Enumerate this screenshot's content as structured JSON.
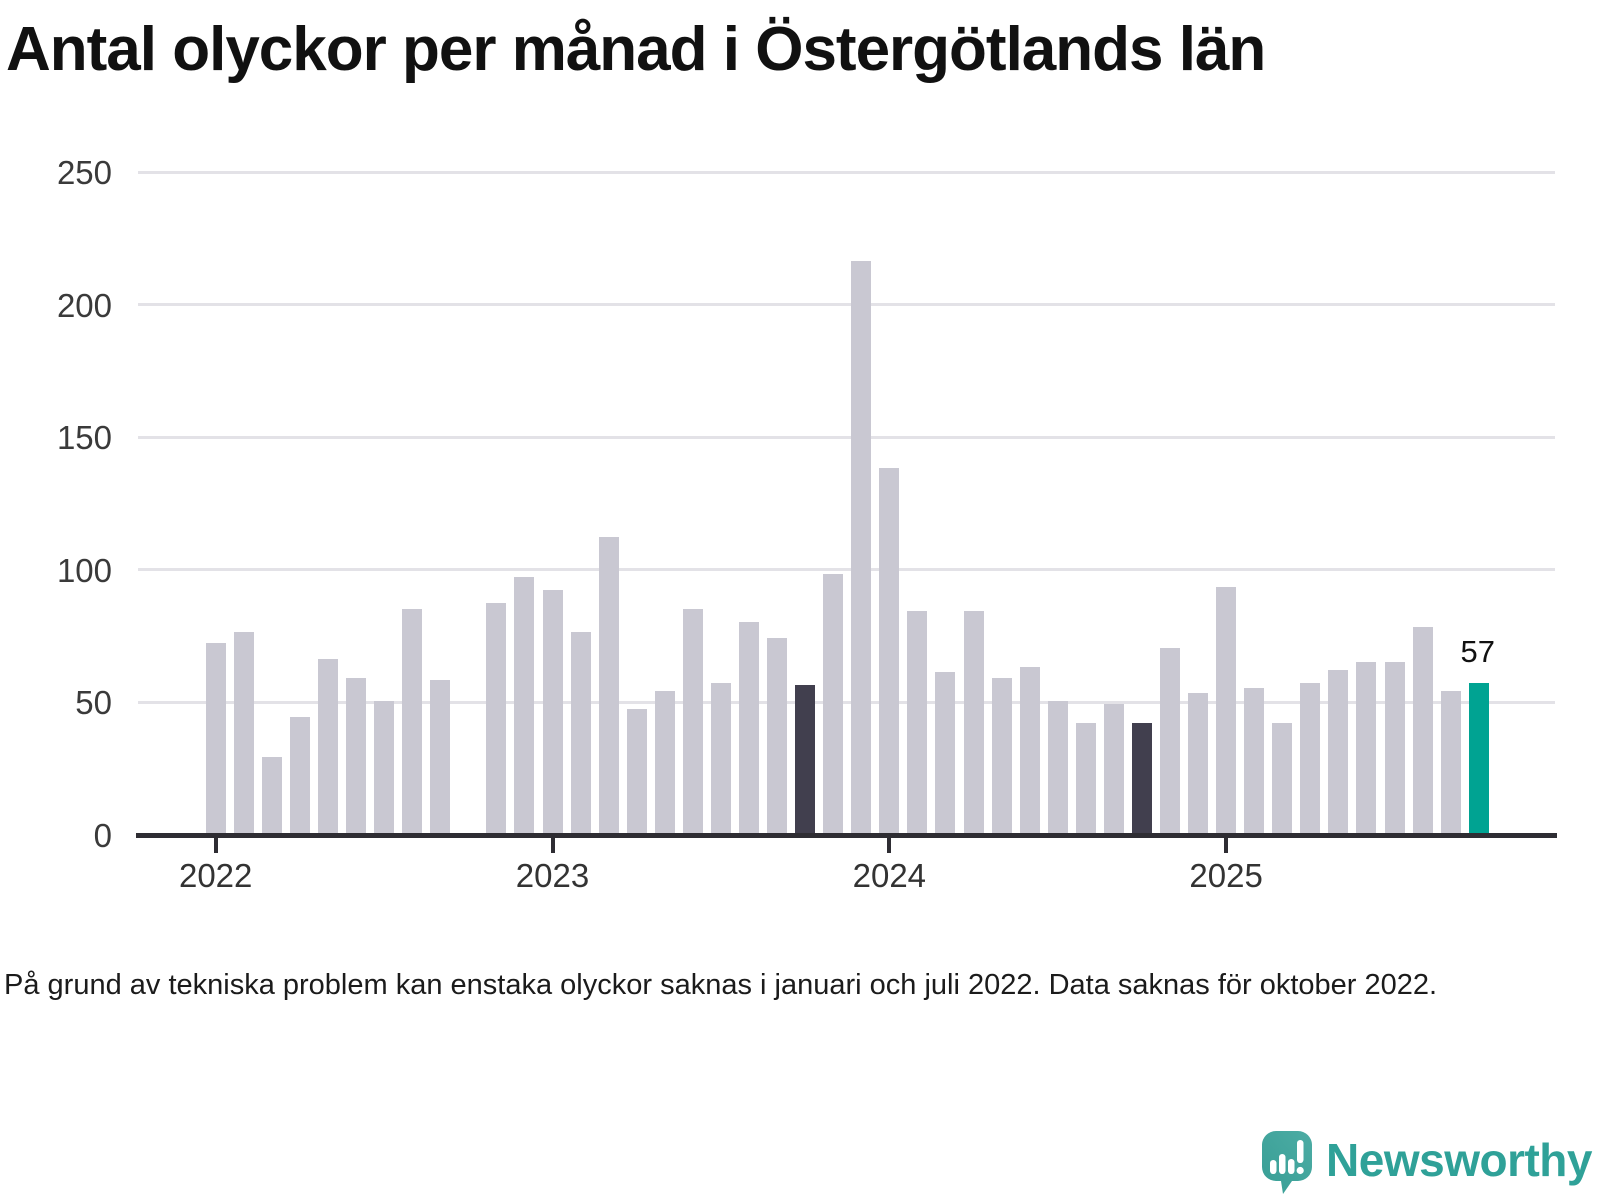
{
  "branding": {
    "wordmark": "Newsworthy",
    "logo_icon": "speech-bubble-bar-chart-icon",
    "logo_color": "#3ca69d",
    "wordmark_color": "#2fa198"
  },
  "colors": {
    "bar_default": "#c9c8d2",
    "bar_dark": "#413f4e",
    "bar_highlight": "#00a392",
    "axis": "#2e2d33",
    "gridline": "#e3e2e7",
    "title_text": "#111111",
    "tick_text": "#3a3a3a",
    "note_text": "#1b1b1b"
  },
  "chart_data": {
    "type": "bar",
    "title": "Antal olyckor per månad i Östergötlands län",
    "note": "På grund av tekniska problem kan enstaka olyckor saknas i januari och juli 2022. Data saknas för oktober 2022.",
    "xlabel": "",
    "ylabel": "",
    "ylim": [
      0,
      250
    ],
    "yticks": [
      0,
      50,
      100,
      150,
      200,
      250
    ],
    "x_year_ticks": [
      "2022",
      "2023",
      "2024",
      "2025"
    ],
    "grid": "horizontal",
    "legend": "none",
    "annotation": {
      "text": "57",
      "month": "2025-10"
    },
    "series": [
      {
        "month": "2022-01",
        "value": 72
      },
      {
        "month": "2022-02",
        "value": 76
      },
      {
        "month": "2022-03",
        "value": 29
      },
      {
        "month": "2022-04",
        "value": 44
      },
      {
        "month": "2022-05",
        "value": 66
      },
      {
        "month": "2022-06",
        "value": 59
      },
      {
        "month": "2022-07",
        "value": 50
      },
      {
        "month": "2022-08",
        "value": 85
      },
      {
        "month": "2022-09",
        "value": 58
      },
      {
        "month": "2022-10",
        "value": null
      },
      {
        "month": "2022-11",
        "value": 87
      },
      {
        "month": "2022-12",
        "value": 97
      },
      {
        "month": "2023-01",
        "value": 92
      },
      {
        "month": "2023-02",
        "value": 76
      },
      {
        "month": "2023-03",
        "value": 112
      },
      {
        "month": "2023-04",
        "value": 47
      },
      {
        "month": "2023-05",
        "value": 54
      },
      {
        "month": "2023-06",
        "value": 85
      },
      {
        "month": "2023-07",
        "value": 57
      },
      {
        "month": "2023-08",
        "value": 80
      },
      {
        "month": "2023-09",
        "value": 74
      },
      {
        "month": "2023-10",
        "value": 56,
        "state": "dark"
      },
      {
        "month": "2023-11",
        "value": 98
      },
      {
        "month": "2023-12",
        "value": 216
      },
      {
        "month": "2024-01",
        "value": 138
      },
      {
        "month": "2024-02",
        "value": 84
      },
      {
        "month": "2024-03",
        "value": 61
      },
      {
        "month": "2024-04",
        "value": 84
      },
      {
        "month": "2024-05",
        "value": 59
      },
      {
        "month": "2024-06",
        "value": 63
      },
      {
        "month": "2024-07",
        "value": 50
      },
      {
        "month": "2024-08",
        "value": 42
      },
      {
        "month": "2024-09",
        "value": 49
      },
      {
        "month": "2024-10",
        "value": 42,
        "state": "dark"
      },
      {
        "month": "2024-11",
        "value": 70
      },
      {
        "month": "2024-12",
        "value": 53
      },
      {
        "month": "2025-01",
        "value": 93
      },
      {
        "month": "2025-02",
        "value": 55
      },
      {
        "month": "2025-03",
        "value": 42
      },
      {
        "month": "2025-04",
        "value": 57
      },
      {
        "month": "2025-05",
        "value": 62
      },
      {
        "month": "2025-06",
        "value": 65
      },
      {
        "month": "2025-07",
        "value": 65
      },
      {
        "month": "2025-08",
        "value": 78
      },
      {
        "month": "2025-09",
        "value": 54
      },
      {
        "month": "2025-10",
        "value": 57,
        "state": "highlight"
      }
    ]
  }
}
